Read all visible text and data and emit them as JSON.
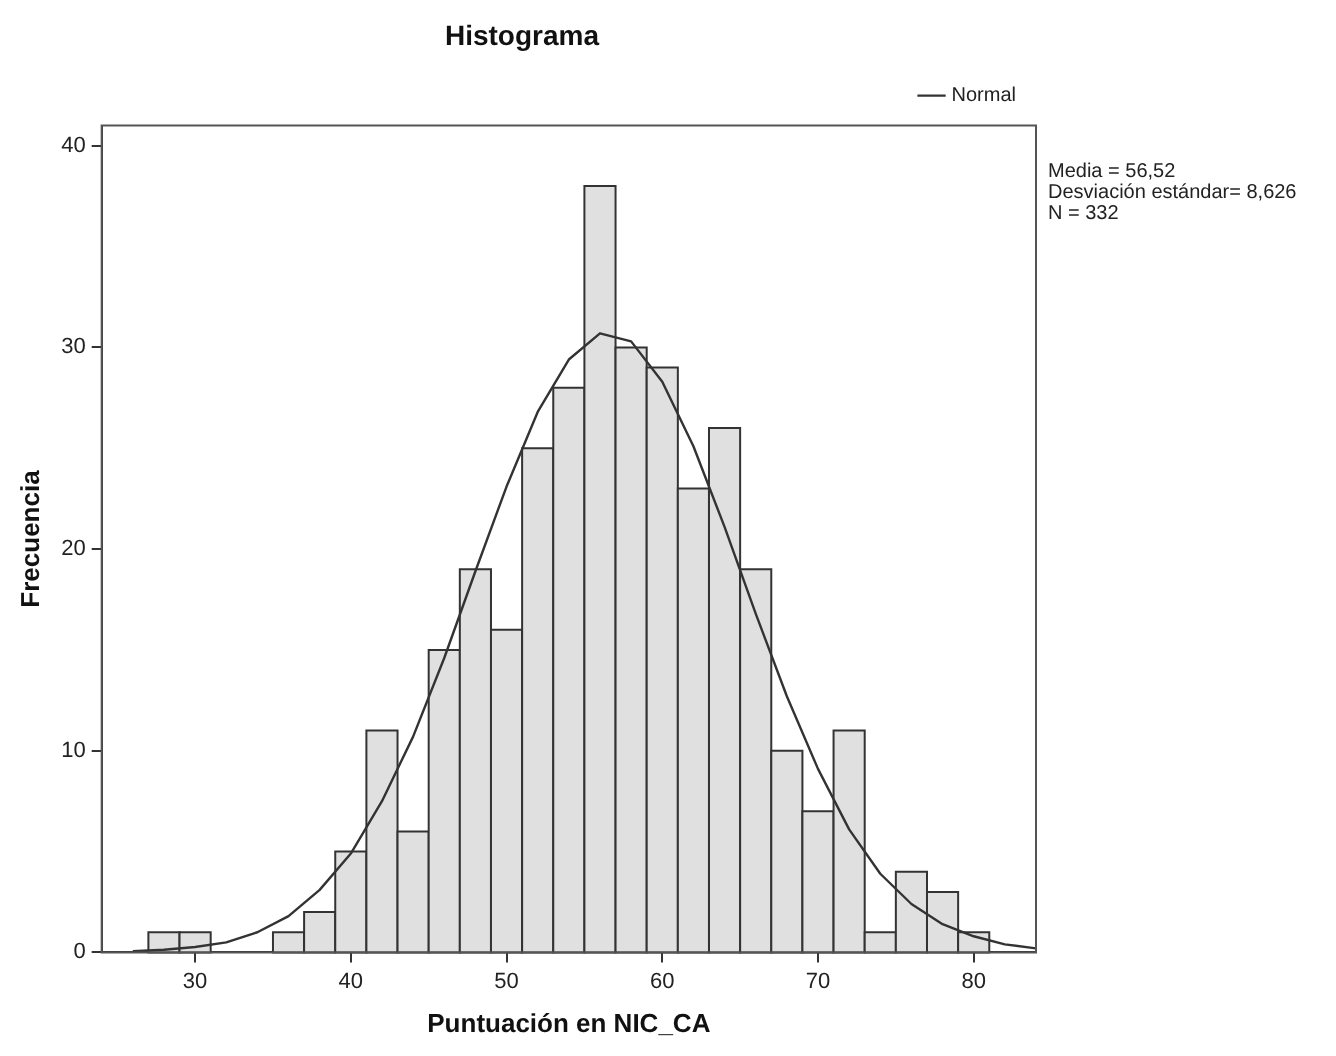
{
  "chart_data": {
    "type": "histogram",
    "title": "Histograma",
    "xlabel": "Puntuación en NIC_CA",
    "ylabel": "Frecuencia",
    "bins": [
      27,
      29,
      31,
      33,
      35,
      37,
      39,
      41,
      43,
      45,
      47,
      49,
      51,
      53,
      55,
      57,
      59,
      61,
      63,
      65,
      67,
      69,
      71,
      73,
      75,
      77,
      79,
      81
    ],
    "values": [
      1,
      1,
      0,
      0,
      1,
      2,
      5,
      11,
      6,
      15,
      19,
      16,
      25,
      28,
      38,
      30,
      29,
      23,
      26,
      19,
      10,
      7,
      11,
      1,
      4,
      3,
      1
    ],
    "color": "#e0e0e0",
    "series": [
      {
        "type": "line",
        "name": "Normal",
        "color": "#333333",
        "x": [
          26,
          28,
          30,
          32,
          34,
          36,
          38,
          40,
          42,
          44,
          46,
          48,
          50,
          52,
          54,
          56,
          58,
          60,
          62,
          64,
          66,
          68,
          70,
          72,
          74,
          76,
          78,
          80,
          82,
          84
        ],
        "values": [
          0.06,
          0.13,
          0.27,
          0.5,
          1.0,
          1.8,
          3.1,
          4.9,
          7.5,
          10.7,
          14.6,
          18.9,
          23.1,
          26.8,
          29.4,
          30.7,
          30.3,
          28.3,
          25.1,
          21.1,
          16.8,
          12.7,
          9.1,
          6.1,
          3.9,
          2.4,
          1.4,
          0.8,
          0.4,
          0.2
        ]
      }
    ],
    "xlim": [
      24,
      84
    ],
    "ylim": [
      0,
      41
    ],
    "xticks": [
      30,
      40,
      50,
      60,
      70,
      80
    ],
    "yticks": [
      0,
      10,
      20,
      30,
      40
    ],
    "grid": false,
    "legend": "top right",
    "marker": "none",
    "annotations": [
      "Media = 56,52",
      "Desviación estándar= 8,626",
      "N = 332"
    ]
  }
}
